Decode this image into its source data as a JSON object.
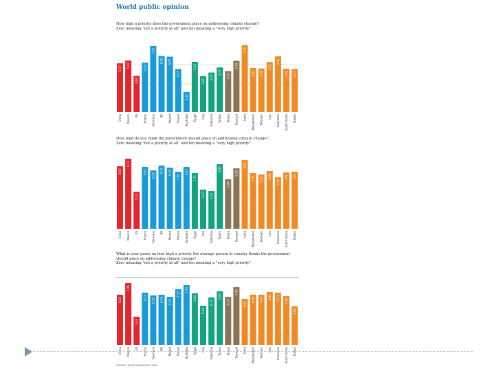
{
  "heading": "World public opinion",
  "source": "SOURCE: WORLD BANK/WPO 2009",
  "colors": {
    "red": "#e3262e",
    "blue": "#1a9ad6",
    "green": "#12a37f",
    "brown": "#8a7455",
    "orange": "#f08a24"
  },
  "chart_data": [
    {
      "type": "bar",
      "title": "How high a priority does the government place on addressing climate change?",
      "subtitle": "Zero meaning \"not a priority at all\" and ten meaning a \"very high priority\"",
      "categories": [
        "China",
        "Mexico",
        "US",
        "France",
        "Germany",
        "UK",
        "Poland",
        "Russia",
        "Australia",
        "Egypt",
        "Iraq",
        "Palestine",
        "Turkey",
        "Kenya",
        "Senegal",
        "India",
        "Bangladesh",
        "Vietnam",
        "Iran",
        "Indonesia",
        "South Korea",
        "Taiwan"
      ],
      "groups": [
        "red",
        "red",
        "red",
        "blue",
        "blue",
        "blue",
        "blue",
        "blue",
        "blue",
        "green",
        "green",
        "green",
        "green",
        "brown",
        "brown",
        "orange",
        "orange",
        "orange",
        "orange",
        "orange",
        "orange",
        "orange"
      ],
      "values": [
        5.17,
        5.47,
        3.84,
        5.23,
        7.02,
        5.95,
        5.87,
        4.57,
        2.12,
        5.33,
        3.81,
        4.19,
        4.73,
        4.35,
        5.43,
        7.1,
        4.67,
        4.62,
        5.31,
        5.91,
        4.6,
        4.57
      ],
      "ylim": [
        0,
        10
      ]
    },
    {
      "type": "bar",
      "title": "How high do you think the government should place on addressing climate change?",
      "subtitle": "Zero meaning \"not a priority at all\" and ten meaning a \"very high priority\"",
      "categories": [
        "China",
        "Mexico",
        "US",
        "France",
        "Germany",
        "UK",
        "Poland",
        "Russia",
        "Australia",
        "Egypt",
        "Iraq",
        "Palestine",
        "Turkey",
        "Kenya",
        "Senegal",
        "India",
        "Bangladesh",
        "Vietnam",
        "Iran",
        "Indonesia",
        "South Korea",
        "Taiwan"
      ],
      "groups": [
        "red",
        "red",
        "red",
        "blue",
        "blue",
        "blue",
        "blue",
        "blue",
        "blue",
        "green",
        "green",
        "green",
        "green",
        "brown",
        "brown",
        "orange",
        "orange",
        "orange",
        "orange",
        "orange",
        "orange",
        "orange"
      ],
      "values": [
        8.67,
        9.71,
        5.14,
        8.57,
        8.1,
        8.76,
        8.48,
        7.9,
        8.57,
        7.71,
        5.43,
        5.24,
        8.95,
        6.86,
        8.38,
        9.52,
        7.71,
        7.52,
        8.0,
        7.14,
        7.81,
        7.9
      ],
      "ylim": [
        0,
        10
      ]
    },
    {
      "type": "bar",
      "title": "What is your guess on how high a priority the average person in country thinks the government should place on addressing climate change?",
      "subtitle": "Zero meaning \"not a priority at all\" and ten meaning a \"very high priority\"",
      "categories": [
        "China",
        "Mexico",
        "US",
        "France",
        "Germany",
        "UK",
        "Poland",
        "Russia",
        "Australia",
        "Egypt",
        "Iraq",
        "Palestine",
        "Turkey",
        "Kenya",
        "Senegal",
        "India",
        "Bangladesh",
        "Vietnam",
        "Iran",
        "Indonesia",
        "South Korea",
        "Taiwan"
      ],
      "groups": [
        "red",
        "red",
        "red",
        "blue",
        "blue",
        "blue",
        "blue",
        "blue",
        "blue",
        "green",
        "green",
        "green",
        "green",
        "brown",
        "brown",
        "orange",
        "orange",
        "orange",
        "orange",
        "orange",
        "orange",
        "orange"
      ],
      "values": [
        6.46,
        7.96,
        3.63,
        6.73,
        6.37,
        6.46,
        6.19,
        7.17,
        7.7,
        6.64,
        5.04,
        6.11,
        6.9,
        6.19,
        7.43,
        5.93,
        6.46,
        6.46,
        6.81,
        6.73,
        6.28,
        4.96
      ],
      "ylim": [
        0,
        10
      ]
    }
  ]
}
